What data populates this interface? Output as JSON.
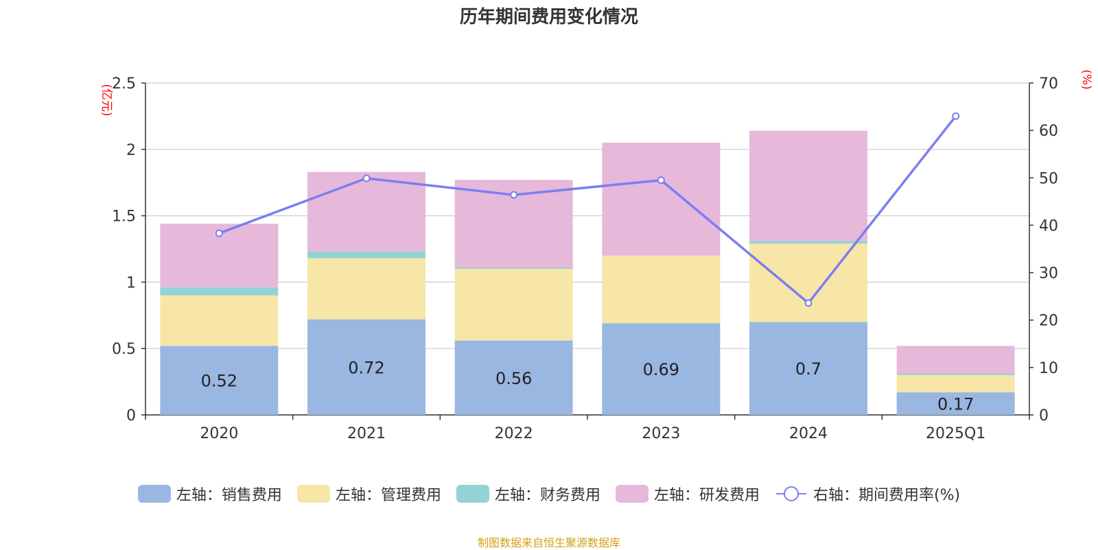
{
  "title": "历年期间费用变化情况",
  "source": "制图数据来自恒生聚源数据库",
  "colors": {
    "sales": "#9ab7e2",
    "admin": "#f7e6a7",
    "finance": "#93d3d5",
    "rd": "#e6b8d9",
    "rate_line": "#7b7ef0",
    "axis_unit": "#ff0000",
    "source_text": "#d4a017",
    "grid": "#cccccc",
    "axis_text": "#333333"
  },
  "chart_data": {
    "type": "bar",
    "stacked": true,
    "categories": [
      "2020",
      "2021",
      "2022",
      "2023",
      "2024",
      "2025Q1"
    ],
    "series": [
      {
        "name": "左轴：销售费用",
        "key": "sales",
        "axis": "left",
        "values": [
          0.52,
          0.72,
          0.56,
          0.69,
          0.7,
          0.17
        ]
      },
      {
        "name": "左轴：管理费用",
        "key": "admin",
        "axis": "left",
        "values": [
          0.38,
          0.46,
          0.54,
          0.51,
          0.59,
          0.13
        ]
      },
      {
        "name": "左轴：财务费用",
        "key": "finance",
        "axis": "left",
        "values": [
          0.06,
          0.05,
          0.01,
          0.0,
          0.02,
          0.01
        ]
      },
      {
        "name": "左轴：研发费用",
        "key": "rd",
        "axis": "left",
        "values": [
          0.48,
          0.6,
          0.66,
          0.85,
          0.83,
          0.21
        ]
      },
      {
        "name": "右轴：期间费用率(%)",
        "key": "rate_line",
        "axis": "right",
        "type": "line",
        "values": [
          38.3,
          49.9,
          46.4,
          49.5,
          23.6,
          63.0
        ]
      }
    ],
    "data_labels": [
      "0.52",
      "0.72",
      "0.56",
      "0.69",
      "0.7",
      "0.17"
    ],
    "y_left": {
      "unit": "(亿元)",
      "min": 0,
      "max": 2.5,
      "ticks": [
        "0",
        "0.5",
        "1",
        "1.5",
        "2",
        "2.5"
      ]
    },
    "y_right": {
      "unit": "(%)",
      "min": 0,
      "max": 70,
      "ticks": [
        "0",
        "10",
        "20",
        "30",
        "40",
        "50",
        "60",
        "70"
      ]
    },
    "grid": true,
    "legend_position": "bottom"
  }
}
